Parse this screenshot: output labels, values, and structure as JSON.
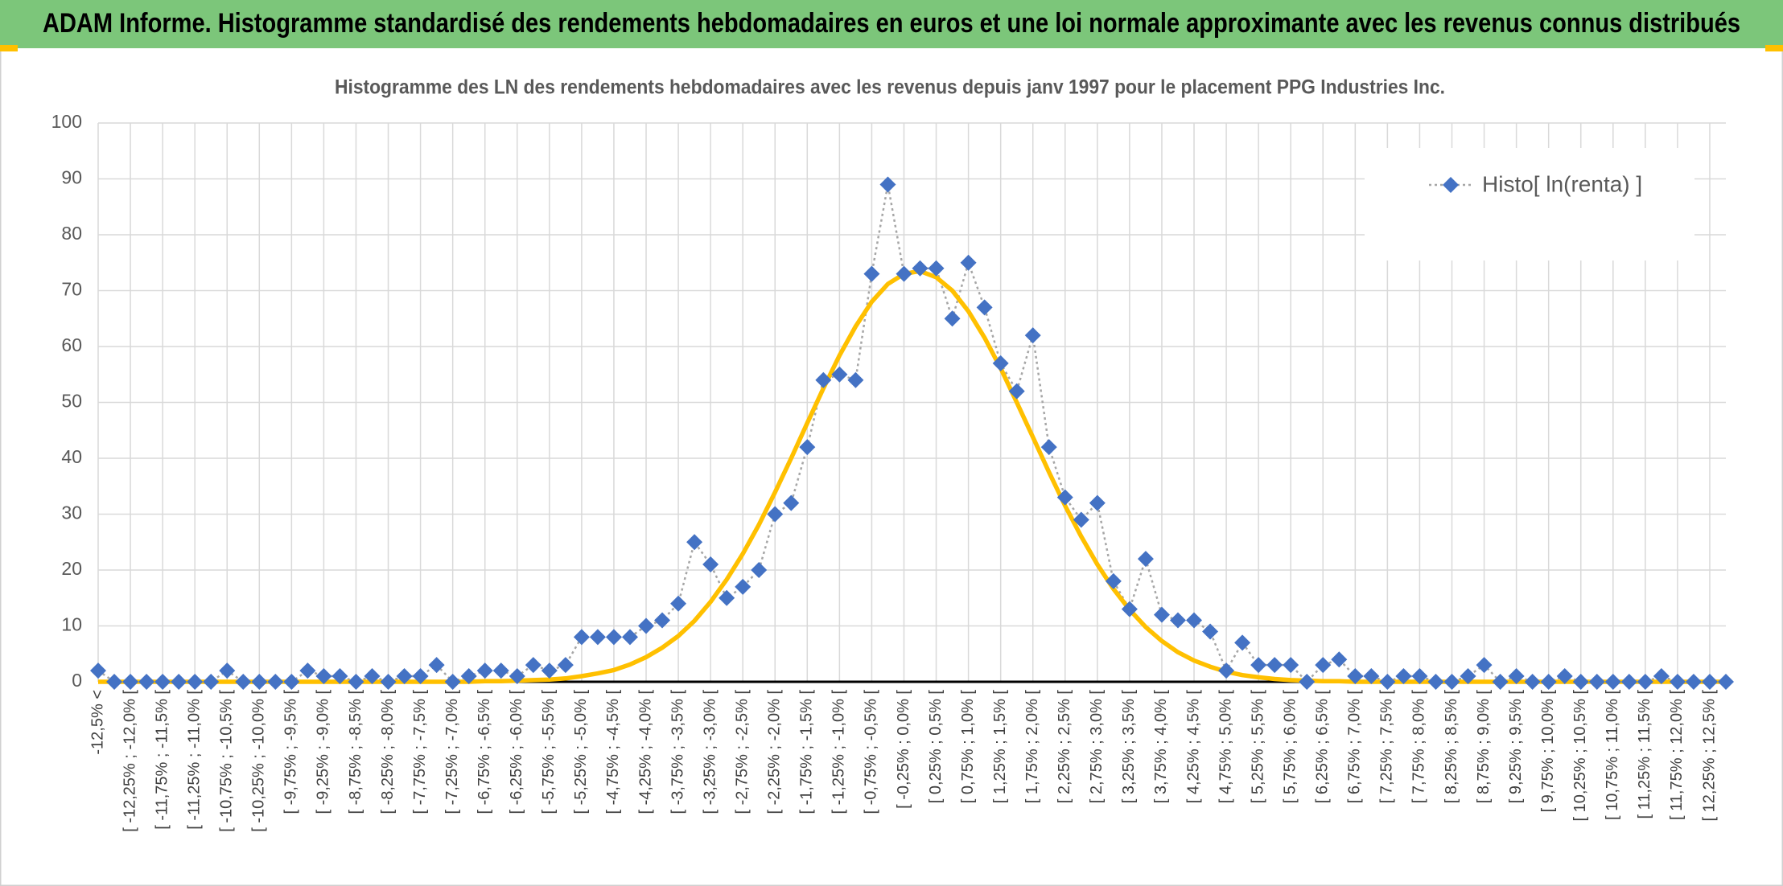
{
  "chart_data": {
    "type": "line",
    "banner": "ADAM Informe. Histogramme standardisé des rendements hebdomadaires en euros et une loi normale approximante avec les revenus connus distribués",
    "title": "Histogramme des LN des rendements hebdomadaires avec les revenus depuis janv 1997 pour le placement PPG Industries Inc.",
    "categories": [
      "-12,5% <",
      null,
      "[ -12,25% ; -12,0% [",
      null,
      "[ -11,75% ; -11,5% [",
      null,
      "[ -11,25% ; -11,0% [",
      null,
      "[ -10,75% ; -10,5% [",
      null,
      "[ -10,25% ; -10,0% [",
      null,
      "[ -9,75% ; -9,5% [",
      null,
      "[ -9,25% ; -9,0% [",
      null,
      "[ -8,75% ; -8,5% [",
      null,
      "[ -8,25% ; -8,0% [",
      null,
      "[ -7,75% ; -7,5% [",
      null,
      "[ -7,25% ; -7,0% [",
      null,
      "[ -6,75% ; -6,5% [",
      null,
      "[ -6,25% ; -6,0% [",
      null,
      "[ -5,75% ; -5,5% [",
      null,
      "[ -5,25% ; -5,0% [",
      null,
      "[ -4,75% ; -4,5% [",
      null,
      "[ -4,25% ; -4,0% [",
      null,
      "[ -3,75% ; -3,5% [",
      null,
      "[ -3,25% ; -3,0% [",
      null,
      "[ -2,75% ; -2,5% [",
      null,
      "[ -2,25% ; -2,0% [",
      null,
      "[ -1,75% ; -1,5% [",
      null,
      "[ -1,25% ; -1,0% [",
      null,
      "[ -0,75% ; -0,5% [",
      null,
      "[ -0,25% ; 0,0% [",
      null,
      "[ 0,25% ; 0,5% [",
      null,
      "[ 0,75% ; 1,0% [",
      null,
      "[ 1,25% ; 1,5% [",
      null,
      "[ 1,75% ; 2,0% [",
      null,
      "[ 2,25% ; 2,5% [",
      null,
      "[ 2,75% ; 3,0% [",
      null,
      "[ 3,25% ; 3,5% [",
      null,
      "[ 3,75% ; 4,0% [",
      null,
      "[ 4,25% ; 4,5% [",
      null,
      "[ 4,75% ; 5,0% [",
      null,
      "[ 5,25% ; 5,5% [",
      null,
      "[ 5,75% ; 6,0% [",
      null,
      "[ 6,25% ; 6,5% [",
      null,
      "[ 6,75% ; 7,0% [",
      null,
      "[ 7,25% ; 7,5% [",
      null,
      "[ 7,75% ; 8,0% [",
      null,
      "[ 8,25% ; 8,5% [",
      null,
      "[ 8,75% ; 9,0% [",
      null,
      "[ 9,25% ; 9,5% [",
      null,
      "[ 9,75% ; 10,0% [",
      null,
      "[ 10,25% ; 10,5% [",
      null,
      "[ 10,75% ; 11,0% [",
      null,
      "[ 11,25% ; 11,5% [",
      null,
      "[ 11,75% ; 12,0% [",
      null,
      "[ 12,25% ; 12,5% [",
      null
    ],
    "series": [
      {
        "name": "Histo[ ln(renta) ]",
        "color": "#4472c4",
        "line_color": "#a6a6a6",
        "style": "dotted-markers",
        "values": [
          2,
          0,
          0,
          0,
          0,
          0,
          0,
          0,
          2,
          0,
          0,
          0,
          0,
          2,
          1,
          1,
          0,
          1,
          0,
          1,
          1,
          3,
          0,
          1,
          2,
          2,
          1,
          3,
          2,
          3,
          8,
          8,
          8,
          8,
          10,
          11,
          14,
          25,
          21,
          15,
          17,
          20,
          30,
          32,
          42,
          54,
          55,
          54,
          73,
          89,
          73,
          74,
          74,
          65,
          75,
          67,
          57,
          52,
          62,
          42,
          33,
          29,
          32,
          18,
          13,
          22,
          12,
          11,
          11,
          9,
          2,
          7,
          3,
          3,
          3,
          0,
          3,
          4,
          1,
          1,
          0,
          1,
          1,
          0,
          0,
          1,
          3,
          0,
          1,
          0,
          0,
          1,
          0,
          0,
          0,
          0,
          0,
          1,
          0,
          0,
          0,
          0
        ]
      },
      {
        "color": "#ffc000",
        "style": "smooth",
        "values": [
          0,
          0,
          0,
          0,
          0,
          0,
          0,
          0,
          0,
          0,
          0,
          0,
          0,
          0,
          0,
          0,
          0,
          0,
          0,
          0,
          0,
          0,
          0,
          0,
          0.1,
          0.1,
          0.2,
          0.3,
          0.4,
          0.6,
          1.0,
          1.5,
          2.1,
          3.1,
          4.4,
          6.1,
          8.2,
          10.9,
          14.3,
          18.3,
          22.9,
          28.1,
          33.9,
          40.0,
          46.3,
          52.5,
          58.4,
          63.6,
          68.0,
          71.2,
          73.0,
          73.5,
          72.4,
          70.0,
          66.3,
          61.6,
          56.1,
          50.0,
          43.8,
          37.5,
          31.5,
          26.0,
          21.0,
          16.6,
          12.9,
          9.8,
          7.3,
          5.3,
          3.8,
          2.7,
          1.8,
          1.2,
          0.8,
          0.5,
          0.3,
          0.2,
          0.1,
          0.1,
          0,
          0,
          0,
          0,
          0,
          0,
          0,
          0,
          0,
          0,
          0,
          0,
          0,
          0,
          0,
          0,
          0,
          0,
          0,
          0,
          0,
          0,
          0,
          0
        ]
      }
    ],
    "ylim": [
      0,
      100
    ],
    "yticks": [
      0,
      10,
      20,
      30,
      40,
      50,
      60,
      70,
      80,
      90,
      100
    ],
    "grid": true,
    "legend": "top-right"
  }
}
